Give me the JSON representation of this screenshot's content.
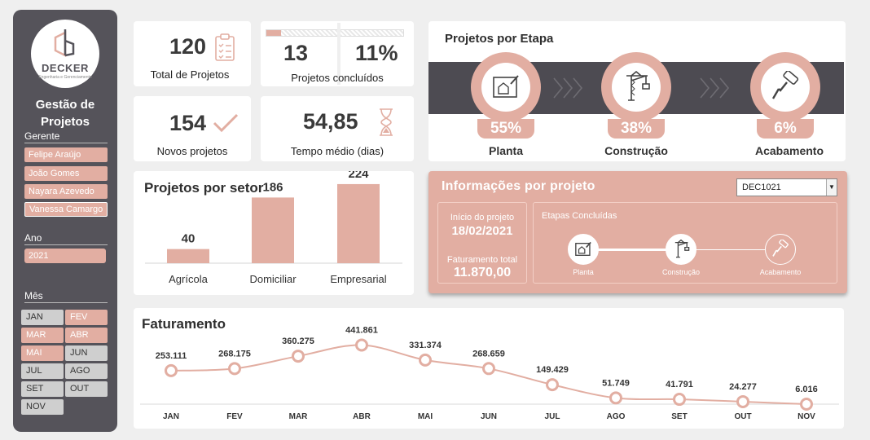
{
  "sidebar": {
    "brand": "DECKER",
    "brand_tagline": "Engenharia e Gerenciamento",
    "title_line1": "Gestão de",
    "title_line2": "Projetos",
    "gerente_label": "Gerente",
    "gerentes": [
      "Felipe Araújo",
      "João Gomes",
      "Nayara Azevedo",
      "Vanessa Camargo"
    ],
    "ano_label": "Ano",
    "ano_value": "2021",
    "mes_label": "Mês",
    "months": [
      {
        "label": "JAN",
        "active": false
      },
      {
        "label": "FEV",
        "active": true
      },
      {
        "label": "MAR",
        "active": true
      },
      {
        "label": "ABR",
        "active": true
      },
      {
        "label": "MAI",
        "active": true
      },
      {
        "label": "JUN",
        "active": false
      },
      {
        "label": "JUL",
        "active": false
      },
      {
        "label": "AGO",
        "active": false
      },
      {
        "label": "SET",
        "active": false
      },
      {
        "label": "OUT",
        "active": false
      },
      {
        "label": "NOV",
        "active": false
      }
    ]
  },
  "kpis": {
    "total_value": "120",
    "total_label": "Total de Projetos",
    "concluidos_value": "13",
    "concluidos_pct": "11%",
    "concluidos_fraction": 0.11,
    "concluidos_label": "Projetos concluídos",
    "novos_value": "154",
    "novos_label": "Novos projetos",
    "tempo_value": "54,85",
    "tempo_label": "Tempo médio (dias)"
  },
  "etapas": {
    "title": "Projetos por Etapa",
    "stages": [
      {
        "pct": "55%",
        "label": "Planta",
        "icon": "blueprint-icon"
      },
      {
        "pct": "38%",
        "label": "Construção",
        "icon": "crane-icon"
      },
      {
        "pct": "6%",
        "label": "Acabamento",
        "icon": "paint-roller-icon"
      }
    ]
  },
  "setor": {
    "title": "Projetos por setor",
    "chart_data": {
      "type": "bar",
      "categories": [
        "Agrícola",
        "Domiciliar",
        "Empresarial"
      ],
      "values": [
        40,
        186,
        224
      ],
      "title": "Projetos por setor",
      "ylim": [
        0,
        240
      ]
    }
  },
  "info": {
    "title": "Informações por projeto",
    "project_code": "DEC1021",
    "inicio_label": "Início do projeto",
    "inicio_value": "18/02/2021",
    "fat_label": "Faturamento total",
    "fat_value": "11.870,00",
    "etapas_label": "Etapas Concluídas",
    "steps": [
      {
        "label": "Planta",
        "done": true
      },
      {
        "label": "Construção",
        "done": true
      },
      {
        "label": "Acabamento",
        "done": false
      }
    ]
  },
  "faturamento": {
    "title": "Faturamento",
    "chart_data": {
      "type": "line",
      "title": "Faturamento",
      "categories": [
        "JAN",
        "FEV",
        "MAR",
        "ABR",
        "MAI",
        "JUN",
        "JUL",
        "AGO",
        "SET",
        "OUT",
        "NOV"
      ],
      "values": [
        253111,
        268175,
        360275,
        441861,
        331374,
        268659,
        149429,
        51749,
        41791,
        24277,
        6016
      ],
      "labels": [
        "253.111",
        "268.175",
        "360.275",
        "441.861",
        "331.374",
        "268.659",
        "149.429",
        "51.749",
        "41.791",
        "24.277",
        "6.016"
      ],
      "ylim": [
        0,
        460000
      ]
    }
  },
  "colors": {
    "accent": "#e2aea2",
    "dark": "#55535a",
    "band": "#4d4b52"
  }
}
